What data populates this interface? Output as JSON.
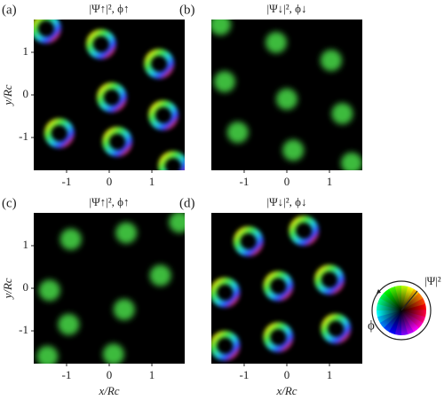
{
  "chart_data": [
    {
      "type": "density",
      "label": "(a)",
      "title": "|Ψ↑|², ϕ↑",
      "marker": "vortex",
      "ylabel": "y/Rc",
      "xlim": [
        -1.77,
        1.77
      ],
      "ylim": [
        -1.77,
        1.77
      ],
      "xticks": [
        -1,
        0,
        1
      ],
      "yticks": [
        -1,
        0,
        1
      ],
      "x": [
        -1.48,
        -0.19,
        1.17,
        0.06,
        1.27,
        -1.17,
        0.19,
        1.5
      ],
      "y": [
        1.56,
        1.19,
        0.73,
        -0.06,
        -0.48,
        -0.9,
        -1.1,
        -1.67
      ]
    },
    {
      "type": "density",
      "label": "(b)",
      "title": "|Ψ↓|², ϕ↓",
      "marker": "spot",
      "color": "#3dbb3d",
      "xlim": [
        -1.77,
        1.77
      ],
      "ylim": [
        -1.77,
        1.77
      ],
      "xticks": [
        -1,
        0,
        1
      ],
      "x": [
        -1.56,
        -0.25,
        1.04,
        -1.46,
        0.0,
        1.3,
        -1.15,
        0.15,
        1.52
      ],
      "y": [
        1.65,
        1.23,
        0.81,
        0.31,
        -0.1,
        -0.44,
        -0.88,
        -1.3,
        -1.6
      ]
    },
    {
      "type": "density",
      "label": "(c)",
      "title": "|Ψ↑|², ϕ↑",
      "marker": "spot",
      "color": "#3dbb3d",
      "xlabel": "x/Rc",
      "ylabel": "y/Rc",
      "xlim": [
        -1.77,
        1.77
      ],
      "ylim": [
        -1.77,
        1.77
      ],
      "xticks": [
        -1,
        0,
        1
      ],
      "yticks": [
        -1,
        0,
        1
      ],
      "x": [
        -0.9,
        0.4,
        1.65,
        -1.4,
        1.2,
        -0.95,
        0.35,
        -1.45,
        0.1
      ],
      "y": [
        1.15,
        1.3,
        1.55,
        -0.05,
        0.3,
        -0.85,
        -0.5,
        -1.6,
        -1.55
      ]
    },
    {
      "type": "density",
      "label": "(d)",
      "title": "|Ψ↓|², ϕ↓",
      "marker": "vortex",
      "xlabel": "x/Rc",
      "xlim": [
        -1.77,
        1.77
      ],
      "ylim": [
        -1.77,
        1.77
      ],
      "xticks": [
        -1,
        0,
        1
      ],
      "x": [
        -0.9,
        0.4,
        -1.45,
        -0.2,
        1.0,
        -1.45,
        -0.2,
        1.15
      ],
      "y": [
        1.1,
        1.35,
        -0.1,
        0.05,
        0.2,
        -1.35,
        -1.15,
        -0.95
      ]
    }
  ],
  "phase_key": {
    "phase_label": "ϕ",
    "amplitude_label": "|Ψ|²"
  }
}
